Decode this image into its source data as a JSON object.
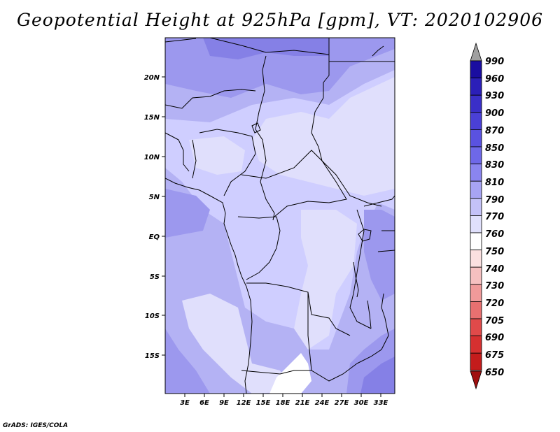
{
  "title": "Geopotential Height at 925hPa [gpm], VT: 2020102906",
  "credit": "GrADS: IGES/COLA",
  "axes": {
    "lat_labels": [
      "20N",
      "15N",
      "10N",
      "5N",
      "EQ",
      "5S",
      "10S",
      "15S"
    ],
    "lon_labels": [
      "3E",
      "6E",
      "9E",
      "12E",
      "15E",
      "18E",
      "21E",
      "24E",
      "27E",
      "30E",
      "33E"
    ]
  },
  "colorbar": {
    "levels": [
      "990",
      "960",
      "930",
      "900",
      "870",
      "850",
      "830",
      "810",
      "790",
      "770",
      "760",
      "750",
      "740",
      "730",
      "720",
      "705",
      "690",
      "675",
      "650"
    ],
    "colors": [
      "#1a0da0",
      "#2b1fb8",
      "#3a2fc8",
      "#4a40d6",
      "#5a52e0",
      "#6e68e8",
      "#8a85ef",
      "#a7a4f4",
      "#c4c2f8",
      "#e0e0fc",
      "#ffffff",
      "#fbe0e0",
      "#f6c0c0",
      "#f09a9a",
      "#e87070",
      "#e04a4a",
      "#d63030",
      "#c41c1c",
      "#a81010"
    ],
    "top_arrow_color": "#a0a0a0",
    "bottom_arrow_color": "#a01010"
  },
  "fill_colors": {
    "background": "#b4b2f4",
    "lighter": "#cfceff",
    "palest": "#e0dffc",
    "white": "#ffffff",
    "darker": "#9c98ee",
    "darkest": "#8580e6"
  }
}
